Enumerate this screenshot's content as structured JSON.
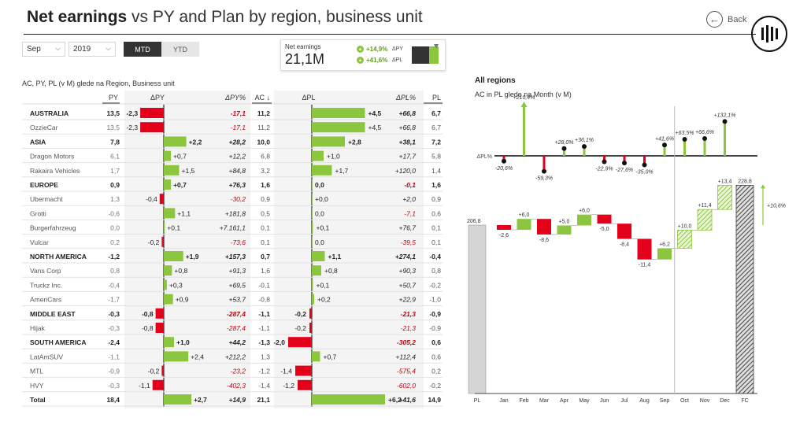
{
  "header": {
    "title_bold": "Net earnings",
    "title_rest": "vs PY and Plan by region, business unit",
    "back_label": "Back"
  },
  "filters": {
    "month": "Sep",
    "year": "2019",
    "toggle": [
      "MTD",
      "YTD"
    ]
  },
  "kpi": {
    "label": "Net earnings",
    "value": "21,1M",
    "d_py": "+14,9%",
    "d_py_label": "ΔPY",
    "d_pl": "+41,6%",
    "d_pl_label": "ΔPL",
    "icon_py": "arrow-up-icon",
    "icon_pl": "arrow-up-icon"
  },
  "colors": {
    "pos": "#8cc63f",
    "neg": "#e3001b",
    "axis": "#444",
    "hatch": "#8cc63f",
    "fc": "#555"
  },
  "table": {
    "subtitle": "AC, PY, PL (v M) glede na Region, Business unit",
    "headers": {
      "py": "PY",
      "dpy": "ΔPY",
      "dpypct": "ΔPY%",
      "ac": "AC ↓",
      "dpl": "ΔPL",
      "dplpct": "ΔPL%",
      "pl": "PL"
    },
    "rows": [
      {
        "name": "AUSTRALIA",
        "py": "13,5",
        "dpy": -2.3,
        "dpy_t": "-2,3",
        "dpypct": "-17,1",
        "ac": "11,2",
        "dpl": 4.5,
        "dpl_t": "+4,5",
        "dplpct": "+66,8",
        "pl": "6,7",
        "bold": true
      },
      {
        "name": "OzzieCar",
        "py": "13,5",
        "dpy": -2.3,
        "dpy_t": "-2,3",
        "dpypct": "-17,1",
        "ac": "11,2",
        "dpl": 4.5,
        "dpl_t": "+4,5",
        "dplpct": "+66,8",
        "pl": "6,7",
        "bold": false
      },
      {
        "name": "ASIA",
        "py": "7,8",
        "dpy": 2.2,
        "dpy_t": "+2,2",
        "dpypct": "+28,2",
        "ac": "10,0",
        "dpl": 2.8,
        "dpl_t": "+2,8",
        "dplpct": "+38,1",
        "pl": "7,2",
        "bold": true
      },
      {
        "name": "Dragon Motors",
        "py": "6,1",
        "dpy": 0.7,
        "dpy_t": "+0,7",
        "dpypct": "+12,2",
        "ac": "6,8",
        "dpl": 1.0,
        "dpl_t": "+1,0",
        "dplpct": "+17,7",
        "pl": "5,8",
        "bold": false
      },
      {
        "name": "Rakaira Vehicles",
        "py": "1,7",
        "dpy": 1.5,
        "dpy_t": "+1,5",
        "dpypct": "+84,8",
        "ac": "3,2",
        "dpl": 1.7,
        "dpl_t": "+1,7",
        "dplpct": "+120,0",
        "pl": "1,4",
        "bold": false
      },
      {
        "name": "EUROPE",
        "py": "0,9",
        "dpy": 0.7,
        "dpy_t": "+0,7",
        "dpypct": "+76,3",
        "ac": "1,6",
        "dpl": 0.0,
        "dpl_t": "0,0",
        "dplpct": "-0,1",
        "pl": "1,6",
        "bold": true
      },
      {
        "name": "Ubermacht",
        "py": "1,3",
        "dpy": -0.4,
        "dpy_t": "-0,4",
        "dpypct": "-30,2",
        "ac": "0,9",
        "dpl": 0.0,
        "dpl_t": "+0,0",
        "dplpct": "+2,0",
        "pl": "0,9",
        "bold": false
      },
      {
        "name": "Grotti",
        "py": "-0,6",
        "dpy": 1.1,
        "dpy_t": "+1,1",
        "dpypct": "+181,8",
        "ac": "0,5",
        "dpl": 0.0,
        "dpl_t": "0,0",
        "dplpct": "-7,1",
        "pl": "0,6",
        "bold": false
      },
      {
        "name": "Burgerfahrzeug",
        "py": "0,0",
        "dpy": 0.1,
        "dpy_t": "+0,1",
        "dpypct": "+7.161,1",
        "ac": "0,1",
        "dpl": 0.1,
        "dpl_t": "+0,1",
        "dplpct": "+76,7",
        "pl": "0,1",
        "bold": false
      },
      {
        "name": "Vulcar",
        "py": "0,2",
        "dpy": -0.2,
        "dpy_t": "-0,2",
        "dpypct": "-73,6",
        "ac": "0,1",
        "dpl": 0.0,
        "dpl_t": "0,0",
        "dplpct": "-39,5",
        "pl": "0,1",
        "bold": false
      },
      {
        "name": "NORTH AMERICA",
        "py": "-1,2",
        "dpy": 1.9,
        "dpy_t": "+1,9",
        "dpypct": "+157,3",
        "ac": "0,7",
        "dpl": 1.1,
        "dpl_t": "+1,1",
        "dplpct": "+274,1",
        "pl": "-0,4",
        "bold": true
      },
      {
        "name": "Vans Corp",
        "py": "0,8",
        "dpy": 0.8,
        "dpy_t": "+0,8",
        "dpypct": "+91,3",
        "ac": "1,6",
        "dpl": 0.8,
        "dpl_t": "+0,8",
        "dplpct": "+90,3",
        "pl": "0,8",
        "bold": false
      },
      {
        "name": "Truckz Inc.",
        "py": "-0,4",
        "dpy": 0.3,
        "dpy_t": "+0,3",
        "dpypct": "+69,5",
        "ac": "-0,1",
        "dpl": 0.1,
        "dpl_t": "+0,1",
        "dplpct": "+50,7",
        "pl": "-0,2",
        "bold": false
      },
      {
        "name": "AmeriCars",
        "py": "-1,7",
        "dpy": 0.9,
        "dpy_t": "+0,9",
        "dpypct": "+53,7",
        "ac": "-0,8",
        "dpl": 0.2,
        "dpl_t": "+0,2",
        "dplpct": "+22,9",
        "pl": "-1,0",
        "bold": false
      },
      {
        "name": "MIDDLE EAST",
        "py": "-0,3",
        "dpy": -0.8,
        "dpy_t": "-0,8",
        "dpypct": "-287,4",
        "ac": "-1,1",
        "dpl": -0.2,
        "dpl_t": "-0,2",
        "dplpct": "-21,3",
        "pl": "-0,9",
        "bold": true
      },
      {
        "name": "Hijak",
        "py": "-0,3",
        "dpy": -0.8,
        "dpy_t": "-0,8",
        "dpypct": "-287,4",
        "ac": "-1,1",
        "dpl": -0.2,
        "dpl_t": "-0,2",
        "dplpct": "-21,3",
        "pl": "-0,9",
        "bold": false
      },
      {
        "name": "SOUTH AMERICA",
        "py": "-2,4",
        "dpy": 1.0,
        "dpy_t": "+1,0",
        "dpypct": "+44,2",
        "ac": "-1,3",
        "dpl": -2.0,
        "dpl_t": "-2,0",
        "dplpct": "-305,2",
        "pl": "0,6",
        "bold": true
      },
      {
        "name": "LatAmSUV",
        "py": "-1,1",
        "dpy": 2.4,
        "dpy_t": "+2,4",
        "dpypct": "+212,2",
        "ac": "1,3",
        "dpl": 0.7,
        "dpl_t": "+0,7",
        "dplpct": "+112,4",
        "pl": "0,6",
        "bold": false
      },
      {
        "name": "MTL",
        "py": "-0,9",
        "dpy": -0.2,
        "dpy_t": "-0,2",
        "dpypct": "-23,2",
        "ac": "-1,2",
        "dpl": -1.4,
        "dpl_t": "-1,4",
        "dplpct": "-575,4",
        "pl": "0,2",
        "bold": false
      },
      {
        "name": "HVY",
        "py": "-0,3",
        "dpy": -1.1,
        "dpy_t": "-1,1",
        "dpypct": "-402,3",
        "ac": "-1,4",
        "dpl": -1.2,
        "dpl_t": "-1,2",
        "dplpct": "-602,0",
        "pl": "-0,2",
        "bold": false
      },
      {
        "name": "Total",
        "py": "18,4",
        "dpy": 2.7,
        "dpy_t": "+2,7",
        "dpypct": "+14,9",
        "ac": "21,1",
        "dpl": 6.2,
        "dpl_t": "+6,2",
        "dplpct": "+41,6",
        "pl": "14,9",
        "bold": true
      }
    ]
  },
  "chart_data": [
    {
      "type": "table",
      "title": "AC, PY, PL (v M) glede na Region, Business unit",
      "note": "bar-in-table for ΔPY and ΔPL columns; values in table.rows"
    },
    {
      "type": "bar",
      "title": "All regions",
      "subtitle": "AC in PL glede na Month (v M)",
      "ylabel": "ΔPL%",
      "categories": [
        "Jan",
        "Feb",
        "Mar",
        "Apr",
        "May",
        "Jun",
        "Jul",
        "Aug",
        "Sep",
        "Oct",
        "Nov",
        "Dec"
      ],
      "values": [
        -20.6,
        210.4,
        -59.3,
        28.0,
        36.1,
        -22.9,
        -27.6,
        -35.0,
        41.6,
        63.5,
        66.6,
        132.1
      ],
      "labels": [
        "-20,6%",
        "+210,4%",
        "-59,3%",
        "+28,0%",
        "+36,1%",
        "-22,9%",
        "-27,6%",
        "-35,0%",
        "+41,6%",
        "+63,5%",
        "+66,6%",
        "+132,1%"
      ]
    },
    {
      "type": "bar",
      "subtype": "waterfall",
      "start": {
        "label": "PL",
        "value": 206.8,
        "text": "206,8"
      },
      "categories": [
        "Jan",
        "Feb",
        "Mar",
        "Apr",
        "May",
        "Jun",
        "Jul",
        "Aug",
        "Sep",
        "Oct",
        "Nov",
        "Dec"
      ],
      "values": [
        -2.6,
        6.0,
        -8.6,
        5.0,
        6.0,
        -5.0,
        -8.4,
        -11.4,
        6.2,
        10.0,
        11.4,
        13.4
      ],
      "labels": [
        "-2,6",
        "+6,0",
        "-8,6",
        "+5,0",
        "+6,0",
        "-5,0",
        "-8,4",
        "-11,4",
        "+6,2",
        "+10,0",
        "+11,4",
        "+13,4"
      ],
      "end": {
        "label": "FC",
        "value": 228.8,
        "text": "228,8"
      },
      "delta_text": "+10,6%"
    }
  ]
}
